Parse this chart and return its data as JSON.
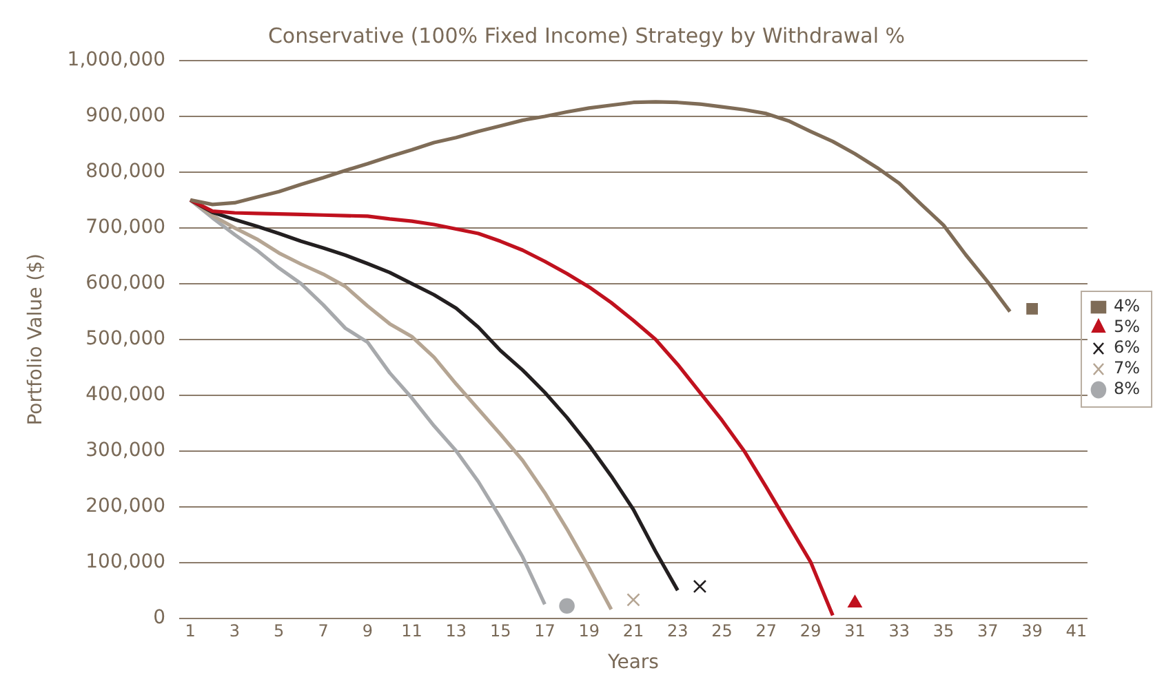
{
  "chart_data": {
    "type": "line",
    "title": "Conservative (100% Fixed Income) Strategy by Withdrawal %",
    "xlabel": "Years",
    "ylabel": "Portfolio Value ($)",
    "xlim": [
      0.5,
      41.5
    ],
    "xticks": [
      1,
      3,
      5,
      7,
      9,
      11,
      13,
      15,
      17,
      19,
      21,
      23,
      25,
      27,
      29,
      31,
      33,
      35,
      37,
      39,
      41
    ],
    "ylim": [
      0,
      1000000
    ],
    "yticks": [
      0,
      {
        "value": 100000,
        "label": "100,000"
      },
      {
        "value": 200000,
        "label": "200,000"
      },
      {
        "value": 300000,
        "label": "300,000"
      },
      {
        "value": 400000,
        "label": "400,000"
      },
      {
        "value": 500000,
        "label": "500,000"
      },
      {
        "value": 600000,
        "label": "600,000"
      },
      {
        "value": 700000,
        "label": "700,000"
      },
      {
        "value": 800000,
        "label": "800,000"
      },
      {
        "value": 900000,
        "label": "900,000"
      },
      {
        "value": 1000000,
        "label": "1,000,000"
      }
    ],
    "grid": "y",
    "legend": "right",
    "series": [
      {
        "type": "line",
        "color": "#7f6c57",
        "x": [
          1,
          2,
          3,
          4,
          5,
          6,
          7,
          8,
          9,
          10,
          11,
          12,
          13,
          14,
          15,
          16,
          17,
          18,
          19,
          20,
          21,
          22,
          23,
          24,
          25,
          26,
          27,
          28,
          29,
          30,
          31,
          32,
          33,
          34,
          35,
          36,
          37,
          38
        ],
        "values": [
          750000,
          742000,
          745000,
          755000,
          765000,
          778000,
          790000,
          803000,
          815000,
          828000,
          840000,
          853000,
          862000,
          873000,
          883000,
          893000,
          900000,
          908000,
          915000,
          920000,
          925000,
          926000,
          925000,
          922000,
          917000,
          912000,
          905000,
          892000,
          873000,
          855000,
          833000,
          808000,
          780000,
          742000,
          705000,
          652000,
          603000,
          550000
        ]
      },
      {
        "type": "line",
        "color": "#c0111e",
        "x": [
          1,
          2,
          3,
          4,
          5,
          6,
          7,
          8,
          9,
          10,
          11,
          12,
          13,
          14,
          15,
          16,
          17,
          18,
          19,
          20,
          21,
          22,
          23,
          24,
          25,
          26,
          27,
          28,
          29,
          30
        ],
        "values": [
          750000,
          730000,
          727000,
          726000,
          725000,
          724000,
          723000,
          722000,
          721000,
          716000,
          712000,
          706000,
          698000,
          690000,
          676000,
          660000,
          640000,
          618000,
          594000,
          566000,
          534000,
          500000,
          455000,
          405000,
          355000,
          300000,
          235000,
          168000,
          101000,
          5000
        ]
      },
      {
        "type": "line",
        "color": "#231f20",
        "x": [
          1,
          2,
          3,
          4,
          5,
          6,
          7,
          8,
          9,
          10,
          11,
          12,
          13,
          14,
          15,
          16,
          17,
          18,
          19,
          20,
          21,
          22,
          23
        ],
        "values": [
          750000,
          728000,
          715000,
          703000,
          690000,
          676000,
          664000,
          651000,
          636000,
          620000,
          600000,
          580000,
          556000,
          522000,
          480000,
          445000,
          405000,
          360000,
          310000,
          255000,
          195000,
          120000,
          50000
        ]
      },
      {
        "type": "line",
        "color": "#b5a593",
        "x": [
          1,
          2,
          3,
          4,
          5,
          6,
          7,
          8,
          9,
          10,
          11,
          12,
          13,
          14,
          15,
          16,
          17,
          18,
          19,
          20
        ],
        "values": [
          750000,
          722000,
          700000,
          680000,
          655000,
          635000,
          617000,
          595000,
          560000,
          528000,
          505000,
          468000,
          420000,
          375000,
          330000,
          283000,
          225000,
          160000,
          90000,
          16000
        ]
      },
      {
        "type": "line",
        "color": "#a7a9ac",
        "x": [
          1,
          2,
          3,
          4,
          5,
          6,
          7,
          8,
          9,
          10,
          11,
          12,
          13,
          14,
          15,
          16,
          17
        ],
        "values": [
          750000,
          718000,
          688000,
          660000,
          628000,
          600000,
          562000,
          520000,
          495000,
          440000,
          395000,
          345000,
          300000,
          245000,
          180000,
          110000,
          25000
        ]
      },
      {
        "type": "scatter",
        "name": "4%",
        "color": "#7f6c57",
        "marker": "square",
        "x": [
          39
        ],
        "values": [
          555000
        ]
      },
      {
        "type": "scatter",
        "name": "5%",
        "color": "#c0111e",
        "marker": "triangle",
        "x": [
          31
        ],
        "values": [
          27000
        ]
      },
      {
        "type": "scatter",
        "name": "6%",
        "color": "#231f20",
        "marker": "cross",
        "x": [
          24
        ],
        "values": [
          57000
        ]
      },
      {
        "type": "scatter",
        "name": "7%",
        "color": "#b5a593",
        "marker": "cross",
        "x": [
          21
        ],
        "values": [
          33000
        ]
      },
      {
        "type": "scatter",
        "name": "8%",
        "color": "#a7a9ac",
        "marker": "circle",
        "x": [
          18
        ],
        "values": [
          22000
        ]
      }
    ]
  }
}
